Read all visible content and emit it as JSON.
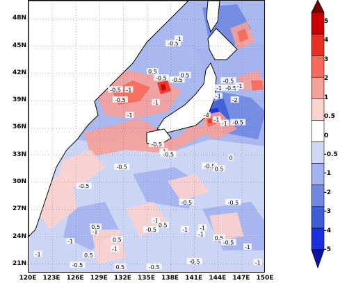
{
  "map": {
    "lon_range": [
      120,
      150
    ],
    "lat_range": [
      20,
      50
    ],
    "y_ticks": [
      "48N",
      "45N",
      "42N",
      "39N",
      "36N",
      "33N",
      "30N",
      "27N",
      "24N",
      "21N"
    ],
    "y_tick_values": [
      48,
      45,
      42,
      39,
      36,
      33,
      30,
      27,
      24,
      21
    ],
    "x_ticks": [
      "120E",
      "123E",
      "126E",
      "129E",
      "132E",
      "135E",
      "138E",
      "141E",
      "144E",
      "147E",
      "150E"
    ],
    "x_tick_values": [
      120,
      123,
      126,
      129,
      132,
      135,
      138,
      141,
      144,
      147,
      150
    ],
    "contour_labels": [
      {
        "text": "-0.5",
        "lon": 138.3,
        "lat": 45.3
      },
      {
        "text": "-1",
        "lon": 139.0,
        "lat": 45.8
      },
      {
        "text": "0.5",
        "lon": 135.7,
        "lat": 42.2
      },
      {
        "text": "-0.5",
        "lon": 136.8,
        "lat": 41.5
      },
      {
        "text": "-0.5",
        "lon": 138.8,
        "lat": 41.3
      },
      {
        "text": "0.5",
        "lon": 139.8,
        "lat": 41.8
      },
      {
        "text": "-0.5",
        "lon": 131.0,
        "lat": 40.2
      },
      {
        "text": "-1",
        "lon": 132.7,
        "lat": 40.2
      },
      {
        "text": "-0.5",
        "lon": 131.6,
        "lat": 39.1
      },
      {
        "text": "-1",
        "lon": 136.1,
        "lat": 38.8
      },
      {
        "text": "-1",
        "lon": 132.8,
        "lat": 37.4
      },
      {
        "text": "-0.5",
        "lon": 145.3,
        "lat": 41.2
      },
      {
        "text": "-1",
        "lon": 144.1,
        "lat": 40.4
      },
      {
        "text": "-0.5",
        "lon": 145.6,
        "lat": 40.4
      },
      {
        "text": "-1",
        "lon": 146.7,
        "lat": 40.6
      },
      {
        "text": "-1",
        "lon": 144.0,
        "lat": 39.5
      },
      {
        "text": "-2",
        "lon": 146.1,
        "lat": 39.1
      },
      {
        "text": "-4",
        "lon": 142.5,
        "lat": 37.4
      },
      {
        "text": "-1",
        "lon": 143.8,
        "lat": 36.9
      },
      {
        "text": "-0.5",
        "lon": 146.5,
        "lat": 36.6
      },
      {
        "text": "-1",
        "lon": 144.8,
        "lat": 36.5
      },
      {
        "text": "-0.5",
        "lon": 136.2,
        "lat": 34.2
      },
      {
        "text": "-1",
        "lon": 137.1,
        "lat": 33.4
      },
      {
        "text": "-0.5",
        "lon": 137.7,
        "lat": 33.1
      },
      {
        "text": "-0.5",
        "lon": 131.8,
        "lat": 31.7
      },
      {
        "text": "-0.5",
        "lon": 142.9,
        "lat": 31.8
      },
      {
        "text": "0",
        "lon": 145.6,
        "lat": 32.7
      },
      {
        "text": "0.5",
        "lon": 144.1,
        "lat": 31.5
      },
      {
        "text": "-0.5",
        "lon": 127.0,
        "lat": 29.6
      },
      {
        "text": "-0.5",
        "lon": 140.0,
        "lat": 27.8
      },
      {
        "text": "-0.5",
        "lon": 145.9,
        "lat": 27.8
      },
      {
        "text": "-1",
        "lon": 128.4,
        "lat": 24.6
      },
      {
        "text": "-1",
        "lon": 136.1,
        "lat": 25.8
      },
      {
        "text": "0.5",
        "lon": 128.5,
        "lat": 25.1
      },
      {
        "text": "-0.5",
        "lon": 135.5,
        "lat": 24.8
      },
      {
        "text": "0.5",
        "lon": 137.0,
        "lat": 25.3
      },
      {
        "text": "-1",
        "lon": 139.8,
        "lat": 24.8
      },
      {
        "text": "-1",
        "lon": 142.0,
        "lat": 25.0
      },
      {
        "text": "-1",
        "lon": 125.3,
        "lat": 23.5
      },
      {
        "text": "0.5",
        "lon": 127.6,
        "lat": 22.0
      },
      {
        "text": "0.5",
        "lon": 131.2,
        "lat": 23.7
      },
      {
        "text": "-1",
        "lon": 130.9,
        "lat": 22.7
      },
      {
        "text": "-1",
        "lon": 141.8,
        "lat": 24.3
      },
      {
        "text": "0.5",
        "lon": 144.1,
        "lat": 23.9
      },
      {
        "text": "-0.5",
        "lon": 145.3,
        "lat": 23.4
      },
      {
        "text": "-1",
        "lon": 147.7,
        "lat": 22.9
      },
      {
        "text": "-1",
        "lon": 121.2,
        "lat": 22.1
      },
      {
        "text": "-0.5",
        "lon": 126.2,
        "lat": 20.9
      },
      {
        "text": "0.5",
        "lon": 131.6,
        "lat": 20.7
      },
      {
        "text": "-0.5",
        "lon": 135.9,
        "lat": 20.7
      },
      {
        "text": "-0.5",
        "lon": 141.0,
        "lat": 21.3
      },
      {
        "text": "-1",
        "lon": 149.0,
        "lat": 21.2
      }
    ]
  },
  "colorbar": {
    "labels": [
      "5",
      "4",
      "3",
      "2",
      "1",
      "0.5",
      "0",
      "-0.5",
      "-1",
      "-2",
      "-3",
      "-4",
      "-5"
    ],
    "colors": [
      "#7a0000",
      "#c80000",
      "#e83020",
      "#f56a5a",
      "#f5a098",
      "#fbd2ce",
      "#ffffff",
      "#d0d8f5",
      "#a4b2ee",
      "#7088e2",
      "#3e5ed6",
      "#1a2fe0",
      "#0a14a8"
    ]
  },
  "palette": {
    "land": "#ffffff",
    "ocean_base": "#a9b8ee",
    "coast": "#000000"
  }
}
